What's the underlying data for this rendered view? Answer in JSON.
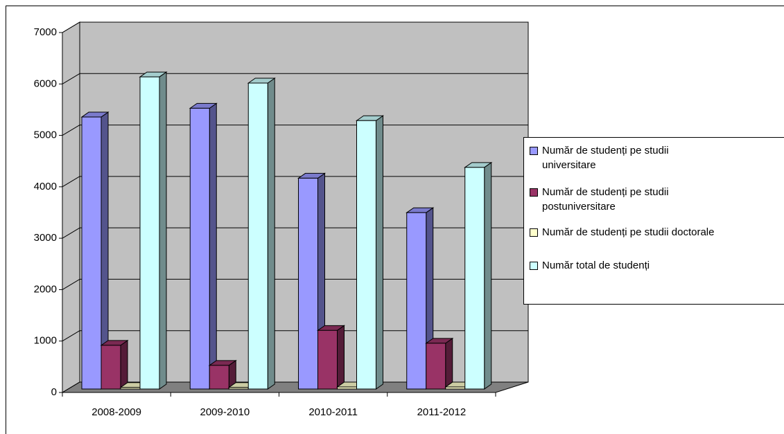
{
  "chart_data": {
    "type": "bar3d",
    "categories": [
      "2008-2009",
      "2009-2010",
      "2010-2011",
      "2011-2012"
    ],
    "series": [
      {
        "name": "Număr de studenți pe studii universitare",
        "color": "#9999ff",
        "values": [
          5290,
          5460,
          4100,
          3430
        ]
      },
      {
        "name": "Număr de studenți pe studii postuniversitare",
        "color": "#993366",
        "values": [
          850,
          460,
          1140,
          890
        ]
      },
      {
        "name": "Număr de studenți pe studii doctorale",
        "color": "#ffffcc",
        "values": [
          30,
          30,
          40,
          40
        ]
      },
      {
        "name": "Număr total de studenți",
        "color": "#ccffff",
        "values": [
          6070,
          5950,
          5220,
          4310
        ]
      }
    ],
    "ylim": [
      0,
      7000
    ],
    "yticks": [
      0,
      1000,
      2000,
      3000,
      4000,
      5000,
      6000,
      7000
    ],
    "grid": true
  }
}
